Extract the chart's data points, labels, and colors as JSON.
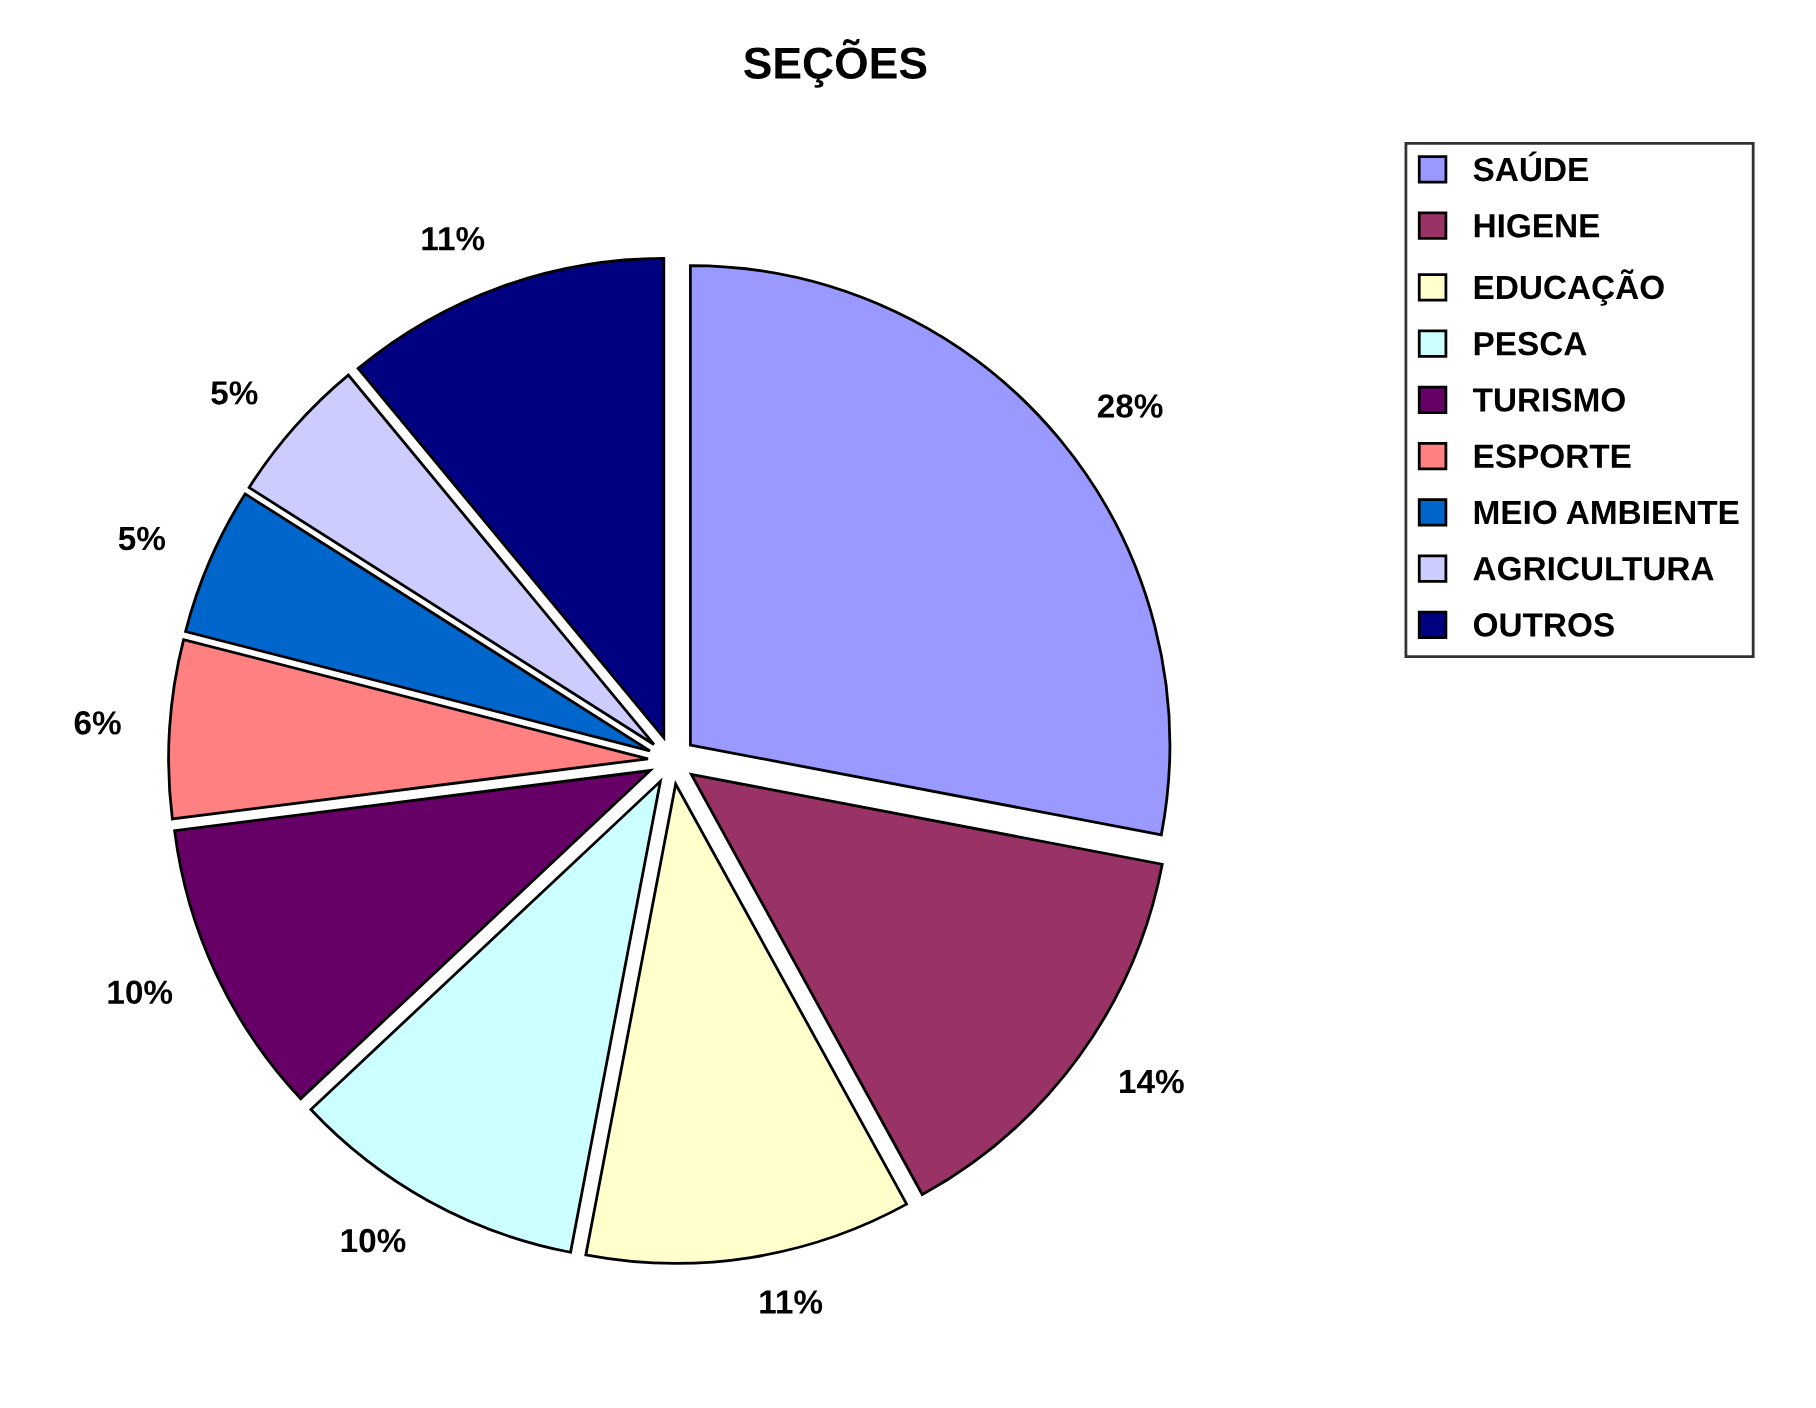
{
  "chart_data": {
    "type": "pie",
    "title": "SEÇÕES",
    "categories": [
      "SAÚDE",
      "HIGENE",
      "EDUCAÇÃO",
      "PESCA",
      "TURISMO",
      "ESPORTE",
      "MEIO AMBIENTE",
      "AGRICULTURA",
      "OUTROS"
    ],
    "values": [
      28,
      14,
      11,
      10,
      10,
      6,
      5,
      5,
      11
    ],
    "colors": [
      "#9999ff",
      "#993366",
      "#ffffcc",
      "#ccffff",
      "#660066",
      "#ff8080",
      "#0066cc",
      "#ccccff",
      "#000080"
    ],
    "value_labels": [
      "28%",
      "14%",
      "11%",
      "10%",
      "10%",
      "6%",
      "5%",
      "5%",
      "11%"
    ],
    "legend": "right"
  }
}
